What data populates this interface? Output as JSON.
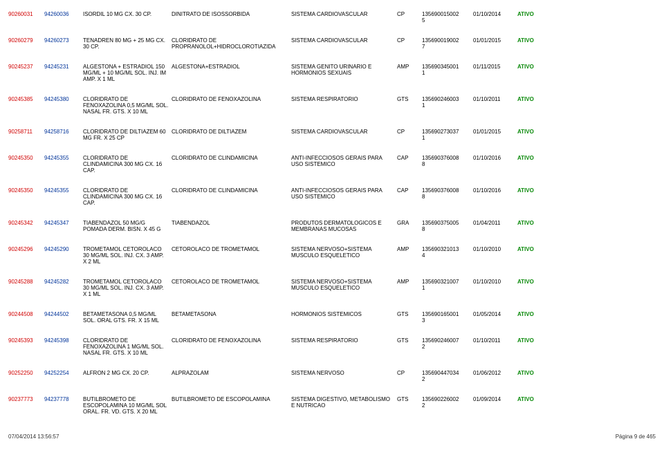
{
  "rows": [
    {
      "code1": "90260031",
      "code2": "94260036",
      "product": "ISORDIL 10 MG CX. 30 CP.",
      "substance": "DINITRATO DE ISOSSORBIDA",
      "system": "SISTEMA CARDIOVASCULAR",
      "form": "CP",
      "registry": "1356900150025",
      "date": "01/10/2014",
      "status": "ATIVO"
    },
    {
      "code1": "90260279",
      "code2": "94260273",
      "product": "TENADREN 80 MG + 25 MG CX. 30 CP.",
      "substance": "CLORIDRATO DE PROPRANOLOL+HIDROCLOROTIAZIDA",
      "system": "SISTEMA CARDIOVASCULAR",
      "form": "CP",
      "registry": "1356900190027",
      "date": "01/01/2015",
      "status": "ATIVO"
    },
    {
      "code1": "90245237",
      "code2": "94245231",
      "product": "ALGESTONA + ESTRADIOL 150 MG/ML + 10 MG/ML SOL. INJ. IM AMP. X 1 ML",
      "substance": "ALGESTONA+ESTRADIOL",
      "system": "SISTEMA GENITO URINARIO E HORMONIOS SEXUAIS",
      "form": "AMP",
      "registry": "1356903450011",
      "date": "01/11/2015",
      "status": "ATIVO"
    },
    {
      "code1": "90245385",
      "code2": "94245380",
      "product": "CLORIDRATO DE FENOXAZOLINA 0,5 MG/ML SOL. NASAL FR. GTS. X 10 ML",
      "substance": "CLORIDRATO DE FENOXAZOLINA",
      "system": "SISTEMA RESPIRATORIO",
      "form": "GTS",
      "registry": "1356902460031",
      "date": "01/10/2011",
      "status": "ATIVO"
    },
    {
      "code1": "90258711",
      "code2": "94258716",
      "product": "CLORIDRATO DE DILTIAZEM 60 MG FR. X 25 CP",
      "substance": "CLORIDRATO DE DILTIAZEM",
      "system": "SISTEMA CARDIOVASCULAR",
      "form": "CP",
      "registry": "1356902730371",
      "date": "01/01/2015",
      "status": "ATIVO"
    },
    {
      "code1": "90245350",
      "code2": "94245355",
      "product": "CLORIDRATO DE CLINDAMICINA 300 MG CX. 16 CAP.",
      "substance": "CLORIDRATO DE CLINDAMICINA",
      "system": "ANTI-INFECCIOSOS GERAIS PARA USO SISTEMICO",
      "form": "CAP",
      "registry": "1356903760088",
      "date": "01/10/2016",
      "status": "ATIVO"
    },
    {
      "code1": "90245350",
      "code2": "94245355",
      "product": "CLORIDRATO DE CLINDAMICINA 300 MG CX. 16 CAP.",
      "substance": "CLORIDRATO DE CLINDAMICINA",
      "system": "ANTI-INFECCIOSOS GERAIS PARA USO SISTEMICO",
      "form": "CAP",
      "registry": "1356903760088",
      "date": "01/10/2016",
      "status": "ATIVO"
    },
    {
      "code1": "90245342",
      "code2": "94245347",
      "product": "TIABENDAZOL 50 MG/G POMADA DERM. BISN. X 45 G",
      "substance": "TIABENDAZOL",
      "system": "PRODUTOS DERMATOLOGICOS E MEMBRANAS MUCOSAS",
      "form": "GRA",
      "registry": "1356903750058",
      "date": "01/04/2011",
      "status": "ATIVO"
    },
    {
      "code1": "90245296",
      "code2": "94245290",
      "product": "TROMETAMOL CETOROLACO 30 MG/ML SOL. INJ. CX. 3 AMP. X 2 ML",
      "substance": "CETOROLACO DE TROMETAMOL",
      "system": "SISTEMA NERVOSO+SISTEMA MUSCULO ESQUELETICO",
      "form": "AMP",
      "registry": "1356903210134",
      "date": "01/10/2010",
      "status": "ATIVO"
    },
    {
      "code1": "90245288",
      "code2": "94245282",
      "product": "TROMETAMOL CETOROLACO 30 MG/ML SOL. INJ. CX. 3 AMP. X 1 ML",
      "substance": "CETOROLACO DE TROMETAMOL",
      "system": "SISTEMA NERVOSO+SISTEMA MUSCULO ESQUELETICO",
      "form": "AMP",
      "registry": "1356903210071",
      "date": "01/10/2010",
      "status": "ATIVO"
    },
    {
      "code1": "90244508",
      "code2": "94244502",
      "product": "BETAMETASONA 0,5 MG/ML SOL. ORAL GTS. FR. X 15 ML",
      "substance": "BETAMETASONA",
      "system": "HORMONIOS SISTEMICOS",
      "form": "GTS",
      "registry": "1356901650013",
      "date": "01/05/2014",
      "status": "ATIVO"
    },
    {
      "code1": "90245393",
      "code2": "94245398",
      "product": "CLORIDRATO DE FENOXAZOLINA 1 MG/ML SOL. NASAL FR. GTS. X 10 ML",
      "substance": "CLORIDRATO DE FENOXAZOLINA",
      "system": "SISTEMA RESPIRATORIO",
      "form": "GTS",
      "registry": "1356902460072",
      "date": "01/10/2011",
      "status": "ATIVO"
    },
    {
      "code1": "90252250",
      "code2": "94252254",
      "product": "ALFRON 2 MG CX. 20 CP.",
      "substance": "ALPRAZOLAM",
      "system": "SISTEMA NERVOSO",
      "form": "CP",
      "registry": "1356904470342",
      "date": "01/06/2012",
      "status": "ATIVO"
    },
    {
      "code1": "90237773",
      "code2": "94237778",
      "product": "BUTILBROMETO DE ESCOPOLAMINA 10 MG/ML SOL ORAL. FR. VD. GTS. X 20 ML",
      "substance": "BUTILBROMETO DE ESCOPOLAMINA",
      "system": "SISTEMA DIGESTIVO, METABOLISMO E NUTRICAO",
      "form": "GTS",
      "registry": "1356902260022",
      "date": "01/09/2014",
      "status": "ATIVO"
    }
  ],
  "footer": {
    "left": "07/04/2014 13:56:57",
    "right": "Página 9 de 465"
  }
}
